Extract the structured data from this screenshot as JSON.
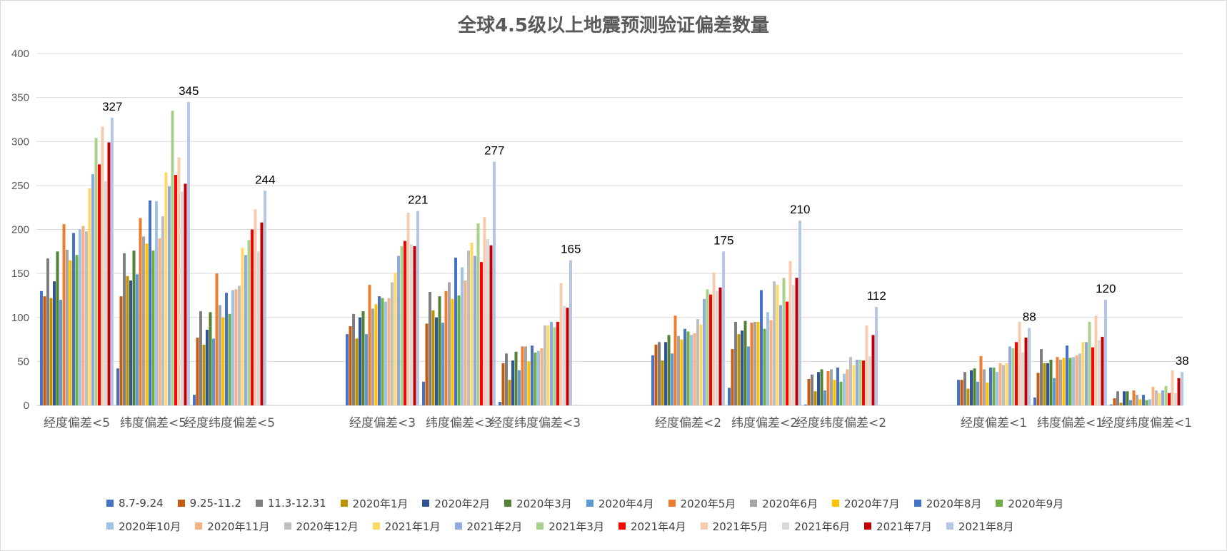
{
  "chart_data": {
    "type": "bar",
    "title": "全球4.5级以上地震预测验证偏差数量",
    "xlabel": "",
    "ylabel": "",
    "ylim": [
      0,
      400
    ],
    "yticks": [
      0,
      50,
      100,
      150,
      200,
      250,
      300,
      350,
      400
    ],
    "grid": true,
    "legend_position": "bottom",
    "categories": [
      "经度偏差<5",
      "纬度偏差<5",
      "经度纬度偏差<5",
      "经度偏差<3",
      "纬度偏差<3",
      "经度纬度偏差<3",
      "经度偏差<2",
      "纬度偏差<2",
      "经度纬度偏差<2",
      "经度偏差<1",
      "纬度偏差<1",
      "经度纬度偏差<1"
    ],
    "series": [
      {
        "name": "8.7-9.24",
        "color": "#4472C4",
        "values": [
          130,
          42,
          12,
          81,
          27,
          4,
          57,
          20,
          1,
          29,
          9,
          1
        ]
      },
      {
        "name": "9.25-11.2",
        "color": "#C55A11",
        "values": [
          124,
          124,
          77,
          90,
          93,
          48,
          69,
          64,
          30,
          29,
          37,
          8
        ]
      },
      {
        "name": "11.3-12.31",
        "color": "#7F7F7F",
        "values": [
          167,
          173,
          107,
          104,
          129,
          59,
          72,
          95,
          35,
          38,
          64,
          16
        ]
      },
      {
        "name": "2020年1月",
        "color": "#BF9000",
        "values": [
          122,
          147,
          69,
          76,
          108,
          29,
          51,
          81,
          16,
          19,
          48,
          3
        ]
      },
      {
        "name": "2020年2月",
        "color": "#2F5597",
        "values": [
          141,
          142,
          86,
          100,
          100,
          51,
          72,
          85,
          38,
          40,
          48,
          16
        ]
      },
      {
        "name": "2020年3月",
        "color": "#548235",
        "values": [
          175,
          176,
          106,
          107,
          124,
          61,
          80,
          96,
          41,
          42,
          52,
          16
        ]
      },
      {
        "name": "2020年4月",
        "color": "#5B9BD5",
        "values": [
          120,
          149,
          76,
          81,
          94,
          40,
          59,
          67,
          17,
          27,
          31,
          6
        ]
      },
      {
        "name": "2020年5月",
        "color": "#ED7D31",
        "values": [
          206,
          213,
          150,
          137,
          130,
          67,
          102,
          94,
          39,
          56,
          55,
          17
        ]
      },
      {
        "name": "2020年6月",
        "color": "#A5A5A5",
        "values": [
          177,
          192,
          114,
          110,
          140,
          67,
          79,
          95,
          41,
          41,
          52,
          12
        ]
      },
      {
        "name": "2020年7月",
        "color": "#FFC000",
        "values": [
          165,
          184,
          100,
          115,
          121,
          50,
          75,
          95,
          29,
          26,
          54,
          7
        ]
      },
      {
        "name": "2020年8月",
        "color": "#4472C4",
        "values": [
          196,
          233,
          128,
          124,
          168,
          68,
          87,
          131,
          43,
          43,
          68,
          12
        ]
      },
      {
        "name": "2020年9月",
        "color": "#70AD47",
        "values": [
          171,
          176,
          104,
          122,
          125,
          60,
          84,
          87,
          27,
          43,
          54,
          6
        ]
      },
      {
        "name": "2020年10月",
        "color": "#9DC3E6",
        "values": [
          200,
          232,
          131,
          118,
          157,
          62,
          80,
          106,
          36,
          38,
          55,
          7
        ]
      },
      {
        "name": "2020年11月",
        "color": "#F4B183",
        "values": [
          204,
          190,
          132,
          122,
          142,
          65,
          82,
          97,
          41,
          48,
          57,
          21
        ]
      },
      {
        "name": "2020年12月",
        "color": "#BFBFBF",
        "values": [
          198,
          215,
          136,
          140,
          176,
          91,
          98,
          141,
          55,
          46,
          59,
          17
        ]
      },
      {
        "name": "2021年1月",
        "color": "#FFD966",
        "values": [
          247,
          265,
          179,
          151,
          185,
          91,
          92,
          137,
          46,
          48,
          72,
          14
        ]
      },
      {
        "name": "2021年2月",
        "color": "#8FAADC",
        "values": [
          263,
          249,
          171,
          170,
          170,
          95,
          121,
          114,
          52,
          67,
          72,
          17
        ]
      },
      {
        "name": "2021年3月",
        "color": "#A9D18E",
        "values": [
          304,
          335,
          188,
          181,
          207,
          89,
          132,
          145,
          52,
          65,
          95,
          22
        ]
      },
      {
        "name": "2021年4月",
        "color": "#FF0000",
        "values": [
          274,
          262,
          200,
          187,
          163,
          95,
          126,
          118,
          51,
          72,
          66,
          14
        ]
      },
      {
        "name": "2021年5月",
        "color": "#F8CBAD",
        "values": [
          317,
          282,
          223,
          219,
          214,
          139,
          151,
          164,
          91,
          95,
          102,
          40
        ]
      },
      {
        "name": "2021年6月",
        "color": "#D9D9D9",
        "values": [
          255,
          243,
          175,
          183,
          189,
          113,
          130,
          137,
          56,
          60,
          74,
          14
        ]
      },
      {
        "name": "2021年7月",
        "color": "#C00000",
        "values": [
          299,
          252,
          208,
          181,
          182,
          111,
          134,
          145,
          80,
          77,
          78,
          31
        ]
      },
      {
        "name": "2021年8月",
        "color": "#B4C7E7",
        "values": [
          327,
          345,
          244,
          221,
          277,
          165,
          175,
          210,
          112,
          88,
          120,
          38
        ]
      }
    ],
    "data_labels": [
      {
        "category": "经度偏差<5",
        "series": "2021年8月",
        "text": "327"
      },
      {
        "category": "纬度偏差<5",
        "series": "2021年8月",
        "text": "345"
      },
      {
        "category": "经度纬度偏差<5",
        "series": "2021年8月",
        "text": "244"
      },
      {
        "category": "经度偏差<3",
        "series": "2021年8月",
        "text": "221"
      },
      {
        "category": "纬度偏差<3",
        "series": "2021年8月",
        "text": "277"
      },
      {
        "category": "经度纬度偏差<3",
        "series": "2021年8月",
        "text": "165"
      },
      {
        "category": "经度偏差<2",
        "series": "2021年8月",
        "text": "175"
      },
      {
        "category": "纬度偏差<2",
        "series": "2021年8月",
        "text": "210"
      },
      {
        "category": "经度纬度偏差<2",
        "series": "2021年8月",
        "text": "112"
      },
      {
        "category": "经度偏差<1",
        "series": "2021年8月",
        "text": "88"
      },
      {
        "category": "纬度偏差<1",
        "series": "2021年8月",
        "text": "120"
      },
      {
        "category": "经度纬度偏差<1",
        "series": "2021年8月",
        "text": "38"
      }
    ]
  }
}
